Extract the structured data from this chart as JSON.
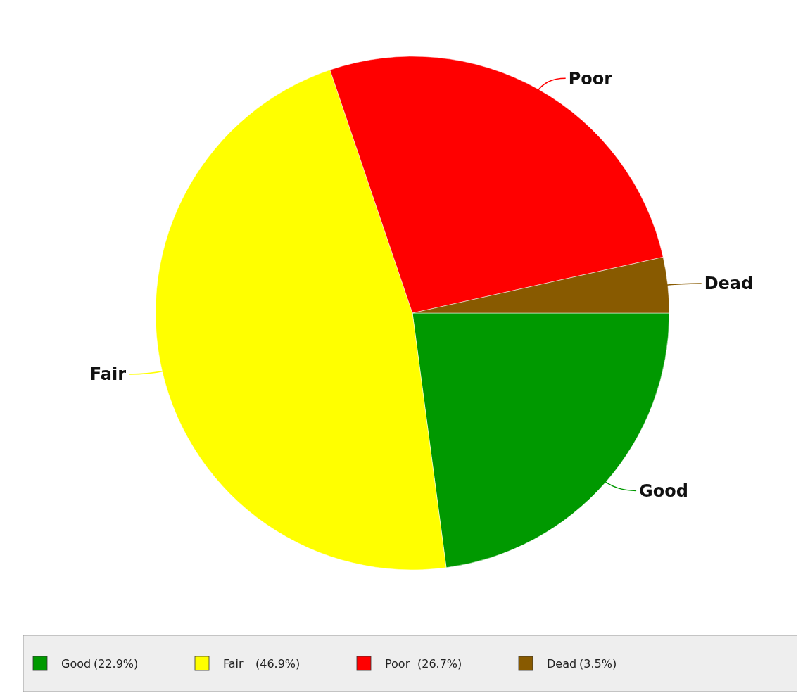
{
  "chart_data": {
    "type": "pie",
    "categories": [
      "Good",
      "Fair",
      "Poor",
      "Dead"
    ],
    "values": [
      22.9,
      46.9,
      26.7,
      3.5
    ],
    "value_labels": [
      "(22.9%)",
      "(46.9%)",
      "(26.7%)",
      "(3.5%)"
    ],
    "colors": [
      "#009900",
      "#ffff00",
      "#ff0000",
      "#885a00"
    ],
    "legend": "bottom"
  }
}
